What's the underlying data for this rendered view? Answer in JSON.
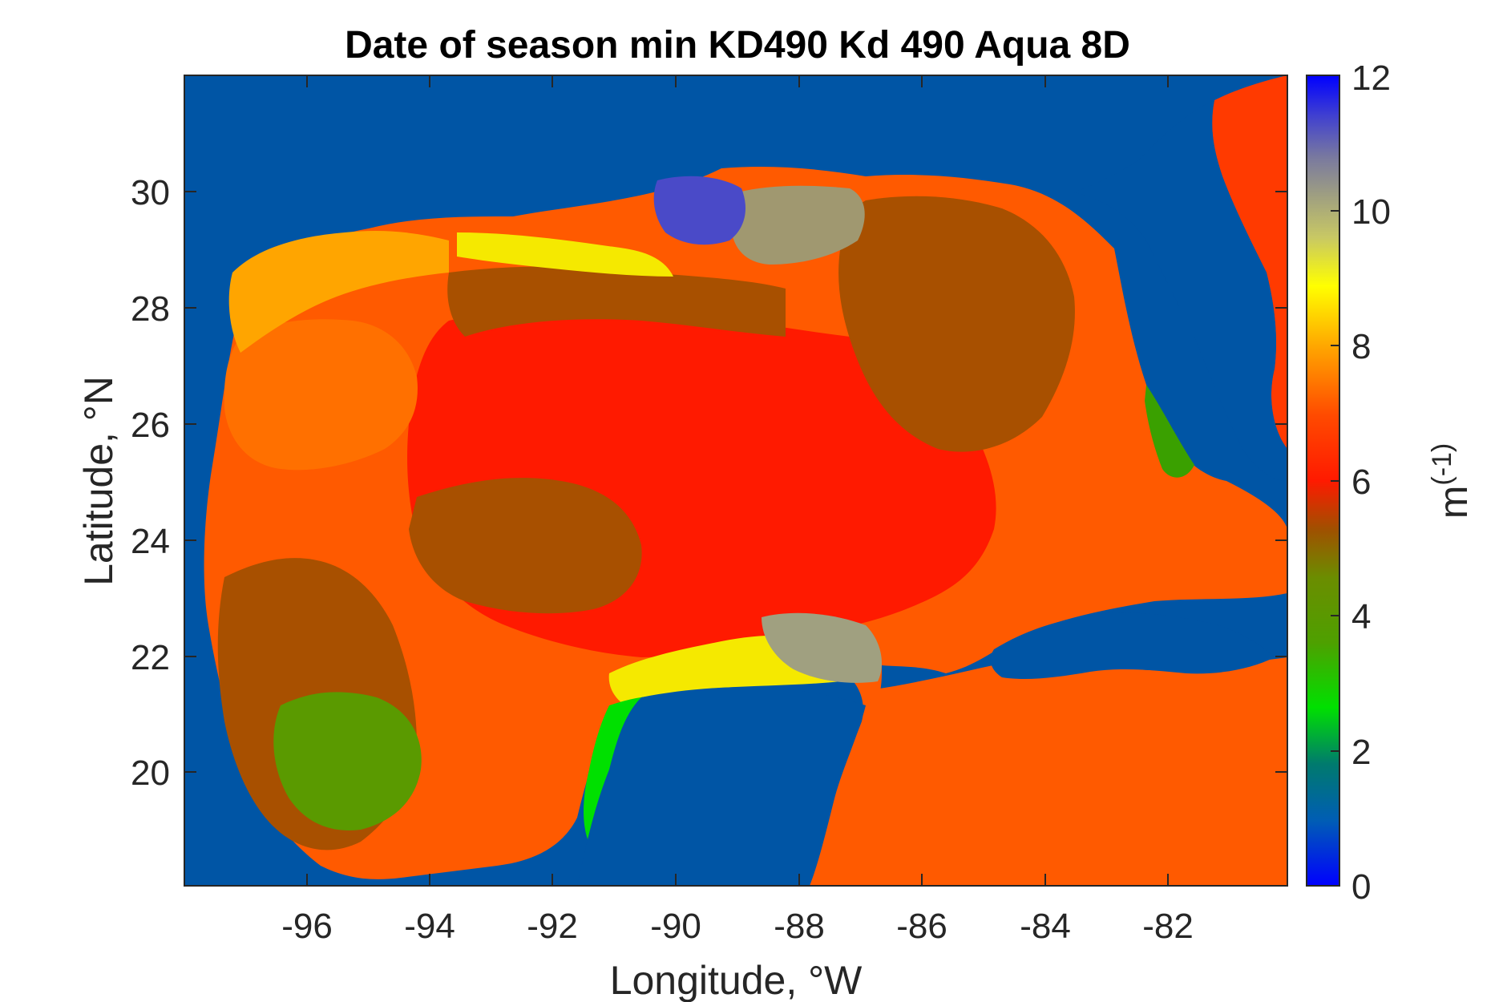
{
  "chart_data": {
    "type": "heatmap",
    "title": "Date of season min KD490 Kd 490 Aqua 8D",
    "xlabel": "Longitude, °W",
    "ylabel": "Latitude, °N",
    "x_ticks": [
      "-96",
      "-94",
      "-92",
      "-90",
      "-88",
      "-86",
      "-84",
      "-82"
    ],
    "x_tick_values": [
      -96,
      -94,
      -92,
      -90,
      -88,
      -86,
      -84,
      -82
    ],
    "y_ticks": [
      "20",
      "22",
      "24",
      "26",
      "28",
      "30"
    ],
    "y_tick_values": [
      20,
      22,
      24,
      26,
      28,
      30
    ],
    "xlim": [
      -98,
      -80.1
    ],
    "ylim": [
      18.1,
      32.1
    ],
    "colorbar": {
      "label": "m(-1)",
      "label_base": "m",
      "label_exp": "(-1)",
      "ticks": [
        "0",
        "2",
        "4",
        "6",
        "8",
        "10",
        "12"
      ],
      "tick_values": [
        0,
        2,
        4,
        6,
        8,
        10,
        12
      ],
      "range": [
        0,
        12
      ],
      "colormap": "jet-like: blue → green → olive → brown → red → orange → yellow → gray → blue"
    },
    "colors": {
      "land": "#0055a5",
      "coastline": "#111111",
      "axes_box": "#262626"
    }
  }
}
